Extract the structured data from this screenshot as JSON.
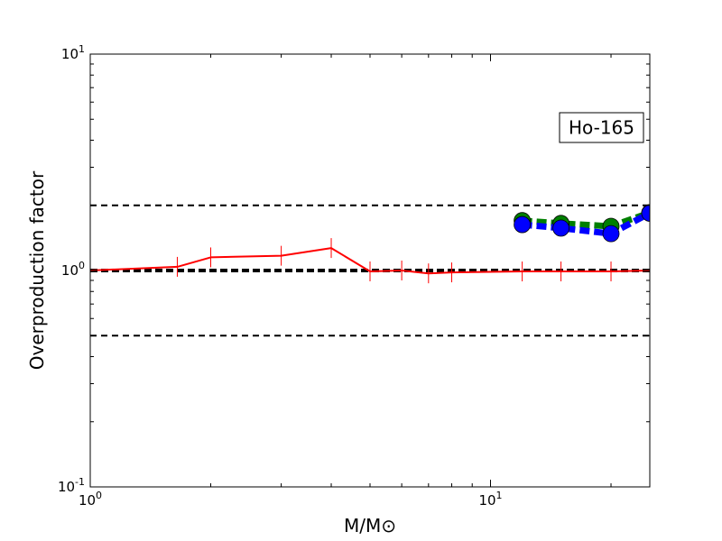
{
  "chart_data": {
    "type": "line",
    "xlabel": "M/M⊙",
    "ylabel": "Overproduction factor",
    "annotation": "Ho-165",
    "xscale": "log",
    "yscale": "log",
    "xlim": [
      1,
      25
    ],
    "ylim": [
      0.1,
      10
    ],
    "x_ticks": [
      {
        "value": 1,
        "base": "10",
        "exp": "0"
      },
      {
        "value": 10,
        "base": "10",
        "exp": "1"
      }
    ],
    "y_ticks": [
      {
        "value": 0.1,
        "base": "10",
        "exp": "-1"
      },
      {
        "value": 1,
        "base": "10",
        "exp": "0"
      },
      {
        "value": 10,
        "base": "10",
        "exp": "1"
      }
    ],
    "reference_lines": [
      {
        "y": 2.0,
        "style": "dashed",
        "color": "#000000"
      },
      {
        "y": 1.0,
        "style": "dashed-thick",
        "color": "#000000"
      },
      {
        "y": 0.5,
        "style": "dashed",
        "color": "#000000"
      }
    ],
    "series": [
      {
        "color": "#ff0000",
        "style": "solid",
        "marker": "vertical-tick",
        "x": [
          1.0,
          1.65,
          2.0,
          3.0,
          4.0,
          5.0,
          6.0,
          7.0,
          8.0,
          12.0,
          15.0,
          20.0,
          25.0
        ],
        "y": [
          1.0,
          1.04,
          1.15,
          1.17,
          1.27,
          0.99,
          1.0,
          0.97,
          0.98,
          0.99,
          0.99,
          0.99,
          1.0
        ]
      },
      {
        "color": "#007f00",
        "style": "dashed-thick",
        "marker": "circle",
        "x": [
          12.0,
          15.0,
          20.0,
          25.0
        ],
        "y": [
          1.7,
          1.65,
          1.6,
          1.85
        ]
      },
      {
        "color": "#0000ff",
        "style": "dashed-thick",
        "marker": "circle",
        "x": [
          12.0,
          15.0,
          20.0,
          25.0
        ],
        "y": [
          1.63,
          1.57,
          1.48,
          1.84
        ]
      }
    ],
    "grid": false,
    "legend": "none"
  }
}
